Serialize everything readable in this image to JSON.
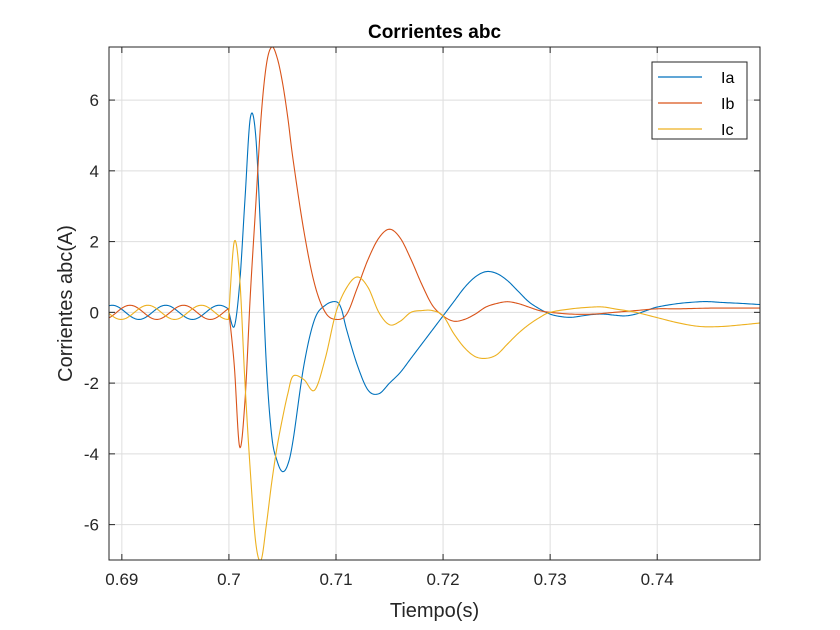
{
  "chart_data": {
    "type": "line",
    "title": "Corrientes abc",
    "xlabel": "Tiempo(s)",
    "ylabel": "Corrientes abc(A)",
    "xlim": [
      0.6888,
      0.7496
    ],
    "ylim": [
      -7,
      7.5
    ],
    "xticks": [
      0.69,
      0.7,
      0.71,
      0.72,
      0.73,
      0.74
    ],
    "xtick_labels": [
      "0.69",
      "0.7",
      "0.71",
      "0.72",
      "0.73",
      "0.74"
    ],
    "yticks": [
      -6,
      -4,
      -2,
      0,
      2,
      4,
      6
    ],
    "ytick_labels": [
      "-6",
      "-4",
      "-2",
      "0",
      "2",
      "4",
      "6"
    ],
    "grid": true,
    "legend_position": "top-right",
    "series": [
      {
        "name": "Ia",
        "color": "#0072BD",
        "x": [
          0.7,
          0.7005,
          0.701,
          0.7015,
          0.702,
          0.7025,
          0.703,
          0.7035,
          0.704,
          0.7045,
          0.705,
          0.7055,
          0.706,
          0.707,
          0.708,
          0.709,
          0.71,
          0.7105,
          0.711,
          0.712,
          0.713,
          0.714,
          0.715,
          0.716,
          0.717,
          0.718,
          0.719,
          0.72,
          0.721,
          0.722,
          0.723,
          0.724,
          0.725,
          0.726,
          0.727,
          0.728,
          0.729,
          0.73,
          0.731,
          0.732,
          0.733,
          0.734,
          0.735,
          0.736,
          0.737,
          0.738,
          0.739,
          0.74,
          0.742,
          0.744,
          0.745,
          0.746,
          0.748,
          0.7496
        ],
        "y": [
          0,
          -0.4,
          0.8,
          3.2,
          5.5,
          5.0,
          2.0,
          -1.5,
          -3.5,
          -4.2,
          -4.5,
          -4.3,
          -3.6,
          -1.5,
          -0.2,
          0.2,
          0.3,
          0.1,
          -0.5,
          -1.5,
          -2.2,
          -2.3,
          -2.0,
          -1.7,
          -1.3,
          -0.9,
          -0.5,
          -0.1,
          0.3,
          0.7,
          1.0,
          1.15,
          1.1,
          0.9,
          0.6,
          0.3,
          0.1,
          -0.05,
          -0.12,
          -0.14,
          -0.1,
          -0.06,
          -0.05,
          -0.08,
          -0.1,
          -0.05,
          0.05,
          0.15,
          0.25,
          0.3,
          0.3,
          0.28,
          0.25,
          0.22
        ]
      },
      {
        "name": "Ib",
        "color": "#D95319",
        "x": [
          0.7,
          0.7005,
          0.701,
          0.7015,
          0.702,
          0.7025,
          0.703,
          0.7035,
          0.704,
          0.7045,
          0.705,
          0.7055,
          0.706,
          0.707,
          0.708,
          0.709,
          0.71,
          0.711,
          0.712,
          0.713,
          0.714,
          0.715,
          0.716,
          0.717,
          0.718,
          0.719,
          0.72,
          0.721,
          0.722,
          0.723,
          0.724,
          0.725,
          0.726,
          0.727,
          0.728,
          0.729,
          0.73,
          0.732,
          0.734,
          0.736,
          0.738,
          0.74,
          0.742,
          0.745,
          0.748,
          0.7496
        ],
        "y": [
          0,
          -1.5,
          -3.8,
          -2.5,
          0.5,
          3.0,
          5.5,
          7.0,
          7.5,
          7.2,
          6.5,
          5.5,
          4.3,
          2.3,
          0.8,
          0.0,
          -0.2,
          -0.05,
          0.7,
          1.5,
          2.1,
          2.35,
          2.1,
          1.5,
          0.8,
          0.2,
          -0.1,
          -0.25,
          -0.2,
          -0.05,
          0.15,
          0.25,
          0.3,
          0.25,
          0.15,
          0.05,
          0.0,
          -0.05,
          -0.05,
          0.0,
          0.05,
          0.1,
          0.1,
          0.12,
          0.12,
          0.12
        ]
      },
      {
        "name": "Ic",
        "color": "#EDB120",
        "x": [
          0.7,
          0.7005,
          0.701,
          0.7015,
          0.702,
          0.7025,
          0.703,
          0.7035,
          0.704,
          0.7045,
          0.705,
          0.7055,
          0.706,
          0.707,
          0.708,
          0.709,
          0.71,
          0.711,
          0.712,
          0.713,
          0.714,
          0.715,
          0.716,
          0.717,
          0.718,
          0.719,
          0.72,
          0.721,
          0.722,
          0.723,
          0.724,
          0.725,
          0.726,
          0.727,
          0.728,
          0.729,
          0.73,
          0.732,
          0.734,
          0.735,
          0.736,
          0.738,
          0.74,
          0.742,
          0.744,
          0.746,
          0.748,
          0.7496
        ],
        "y": [
          0,
          2.0,
          1.0,
          -2.0,
          -4.5,
          -6.5,
          -7.0,
          -6.0,
          -4.8,
          -3.8,
          -3.0,
          -2.3,
          -1.8,
          -1.9,
          -2.2,
          -1.3,
          0.0,
          0.7,
          1.0,
          0.7,
          0.0,
          -0.35,
          -0.25,
          0.0,
          0.05,
          0.05,
          -0.1,
          -0.6,
          -1.0,
          -1.25,
          -1.3,
          -1.2,
          -0.9,
          -0.6,
          -0.35,
          -0.15,
          0.0,
          0.1,
          0.15,
          0.15,
          0.1,
          0.0,
          -0.15,
          -0.3,
          -0.4,
          -0.4,
          -0.35,
          -0.3
        ]
      }
    ]
  }
}
